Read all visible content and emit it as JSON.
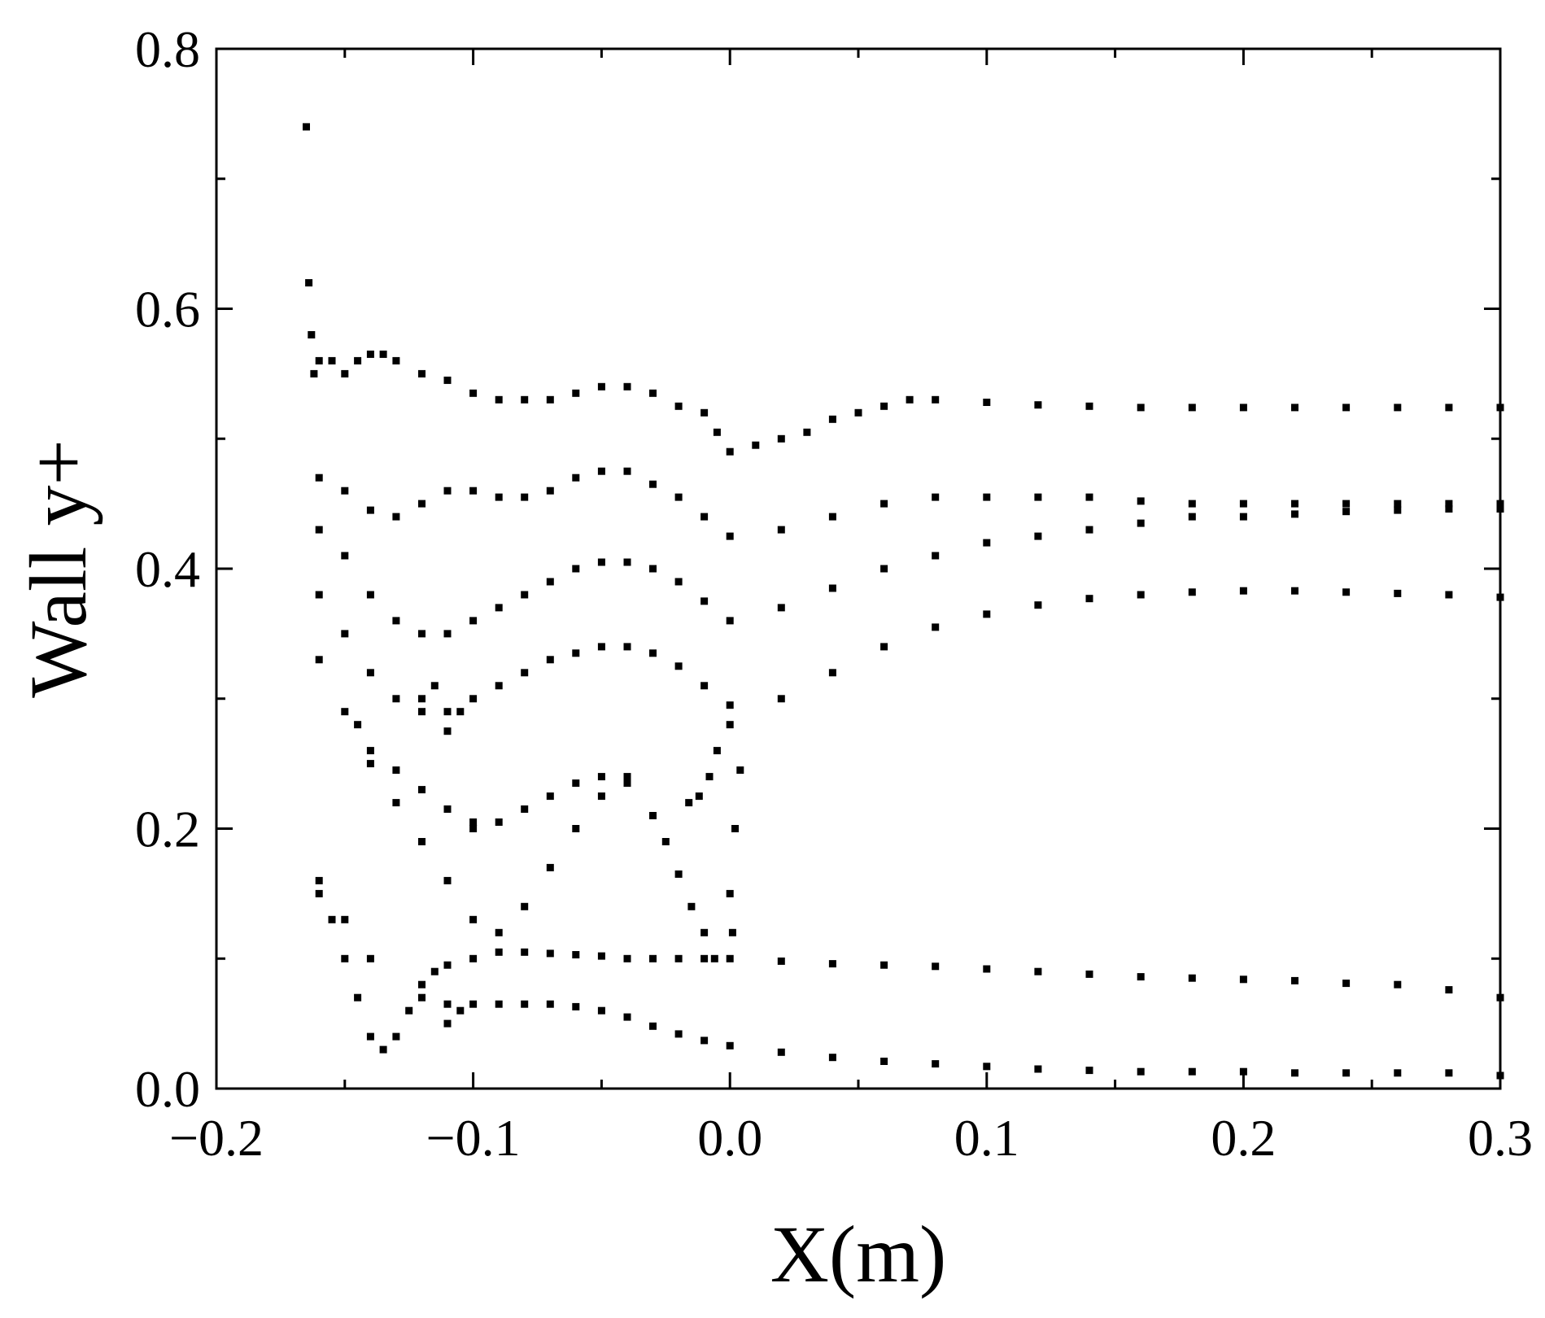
{
  "chart_data": {
    "type": "scatter",
    "title": "",
    "xlabel": "X(m)",
    "ylabel": "Wall y+",
    "xlim": [
      -0.2,
      0.3
    ],
    "ylim": [
      0.0,
      0.8
    ],
    "x_ticks": [
      -0.2,
      -0.1,
      0.0,
      0.1,
      0.2,
      0.3
    ],
    "x_tick_labels": [
      "−0.2",
      "−0.1",
      "0.0",
      "0.1",
      "0.2",
      "0.3"
    ],
    "y_ticks": [
      0.0,
      0.2,
      0.4,
      0.6,
      0.8
    ],
    "y_tick_labels": [
      "0.0",
      "0.2",
      "0.4",
      "0.6",
      "0.8"
    ],
    "grid": false,
    "legend": "none",
    "marker": "square",
    "color": "#000000",
    "series": [
      {
        "points": [
          [
            -0.165,
            0.74
          ],
          [
            -0.164,
            0.62
          ],
          [
            -0.163,
            0.58
          ],
          [
            -0.162,
            0.55
          ],
          [
            -0.16,
            0.56
          ],
          [
            -0.155,
            0.56
          ],
          [
            -0.15,
            0.55
          ],
          [
            -0.145,
            0.56
          ],
          [
            -0.14,
            0.565
          ],
          [
            -0.135,
            0.565
          ],
          [
            -0.13,
            0.56
          ],
          [
            -0.12,
            0.55
          ],
          [
            -0.11,
            0.545
          ],
          [
            -0.1,
            0.535
          ],
          [
            -0.09,
            0.53
          ],
          [
            -0.08,
            0.53
          ],
          [
            -0.07,
            0.53
          ],
          [
            -0.06,
            0.535
          ],
          [
            -0.05,
            0.54
          ],
          [
            -0.04,
            0.54
          ],
          [
            -0.03,
            0.535
          ],
          [
            -0.02,
            0.525
          ],
          [
            -0.01,
            0.52
          ],
          [
            -0.005,
            0.505
          ],
          [
            0.0,
            0.49
          ],
          [
            0.01,
            0.495
          ],
          [
            0.02,
            0.5
          ],
          [
            0.03,
            0.505
          ],
          [
            0.04,
            0.515
          ],
          [
            0.05,
            0.52
          ],
          [
            0.06,
            0.525
          ],
          [
            0.07,
            0.53
          ],
          [
            0.08,
            0.53
          ],
          [
            0.1,
            0.528
          ],
          [
            0.12,
            0.526
          ],
          [
            0.14,
            0.525
          ],
          [
            0.16,
            0.524
          ],
          [
            0.18,
            0.524
          ],
          [
            0.2,
            0.524
          ],
          [
            0.22,
            0.524
          ],
          [
            0.24,
            0.524
          ],
          [
            0.26,
            0.524
          ],
          [
            0.28,
            0.524
          ],
          [
            0.3,
            0.524
          ]
        ]
      },
      {
        "points": [
          [
            -0.16,
            0.47
          ],
          [
            -0.15,
            0.46
          ],
          [
            -0.14,
            0.445
          ],
          [
            -0.13,
            0.44
          ],
          [
            -0.12,
            0.45
          ],
          [
            -0.11,
            0.46
          ],
          [
            -0.1,
            0.46
          ],
          [
            -0.09,
            0.455
          ],
          [
            -0.08,
            0.455
          ],
          [
            -0.07,
            0.46
          ],
          [
            -0.06,
            0.47
          ],
          [
            -0.05,
            0.475
          ],
          [
            -0.04,
            0.475
          ],
          [
            -0.03,
            0.465
          ],
          [
            -0.02,
            0.455
          ],
          [
            -0.01,
            0.44
          ],
          [
            0.0,
            0.425
          ],
          [
            0.02,
            0.43
          ],
          [
            0.04,
            0.44
          ],
          [
            0.06,
            0.45
          ],
          [
            0.08,
            0.455
          ],
          [
            0.1,
            0.455
          ],
          [
            0.12,
            0.455
          ],
          [
            0.14,
            0.455
          ],
          [
            0.16,
            0.452
          ],
          [
            0.18,
            0.45
          ],
          [
            0.2,
            0.45
          ],
          [
            0.22,
            0.45
          ],
          [
            0.24,
            0.45
          ],
          [
            0.26,
            0.45
          ],
          [
            0.28,
            0.45
          ],
          [
            0.3,
            0.45
          ]
        ]
      },
      {
        "points": [
          [
            -0.16,
            0.43
          ],
          [
            -0.15,
            0.41
          ],
          [
            -0.14,
            0.38
          ],
          [
            -0.13,
            0.36
          ],
          [
            -0.12,
            0.35
          ],
          [
            -0.11,
            0.35
          ],
          [
            -0.1,
            0.36
          ],
          [
            -0.09,
            0.37
          ],
          [
            -0.08,
            0.38
          ],
          [
            -0.07,
            0.39
          ],
          [
            -0.06,
            0.4
          ],
          [
            -0.05,
            0.405
          ],
          [
            -0.04,
            0.405
          ],
          [
            -0.03,
            0.4
          ],
          [
            -0.02,
            0.39
          ],
          [
            -0.01,
            0.375
          ],
          [
            0.0,
            0.36
          ],
          [
            0.02,
            0.37
          ],
          [
            0.04,
            0.385
          ],
          [
            0.06,
            0.4
          ],
          [
            0.08,
            0.41
          ],
          [
            0.1,
            0.42
          ],
          [
            0.12,
            0.425
          ],
          [
            0.14,
            0.43
          ],
          [
            0.16,
            0.435
          ],
          [
            0.18,
            0.44
          ],
          [
            0.2,
            0.44
          ],
          [
            0.22,
            0.442
          ],
          [
            0.24,
            0.444
          ],
          [
            0.26,
            0.445
          ],
          [
            0.28,
            0.446
          ],
          [
            0.3,
            0.446
          ]
        ]
      },
      {
        "points": [
          [
            -0.16,
            0.38
          ],
          [
            -0.15,
            0.35
          ],
          [
            -0.14,
            0.32
          ],
          [
            -0.13,
            0.3
          ],
          [
            -0.12,
            0.29
          ],
          [
            -0.11,
            0.29
          ],
          [
            -0.1,
            0.3
          ],
          [
            -0.09,
            0.31
          ],
          [
            -0.08,
            0.32
          ],
          [
            -0.07,
            0.33
          ],
          [
            -0.06,
            0.335
          ],
          [
            -0.05,
            0.34
          ],
          [
            -0.04,
            0.34
          ],
          [
            -0.03,
            0.335
          ],
          [
            -0.02,
            0.325
          ],
          [
            -0.01,
            0.31
          ],
          [
            0.0,
            0.295
          ],
          [
            0.02,
            0.3
          ],
          [
            0.04,
            0.32
          ],
          [
            0.06,
            0.34
          ],
          [
            0.08,
            0.355
          ],
          [
            0.1,
            0.365
          ],
          [
            0.12,
            0.372
          ],
          [
            0.14,
            0.377
          ],
          [
            0.16,
            0.38
          ],
          [
            0.18,
            0.382
          ],
          [
            0.2,
            0.383
          ],
          [
            0.22,
            0.383
          ],
          [
            0.24,
            0.382
          ],
          [
            0.26,
            0.381
          ],
          [
            0.28,
            0.38
          ],
          [
            0.3,
            0.378
          ]
        ]
      },
      {
        "points": [
          [
            -0.16,
            0.33
          ],
          [
            -0.15,
            0.29
          ],
          [
            -0.14,
            0.26
          ],
          [
            -0.13,
            0.245
          ],
          [
            -0.12,
            0.23
          ],
          [
            -0.11,
            0.215
          ],
          [
            -0.1,
            0.205
          ],
          [
            -0.09,
            0.205
          ],
          [
            -0.08,
            0.215
          ],
          [
            -0.07,
            0.225
          ],
          [
            -0.06,
            0.235
          ],
          [
            -0.05,
            0.24
          ],
          [
            -0.04,
            0.235
          ],
          [
            -0.03,
            0.21
          ],
          [
            -0.025,
            0.19
          ],
          [
            -0.02,
            0.165
          ],
          [
            -0.015,
            0.14
          ],
          [
            -0.01,
            0.12
          ],
          [
            -0.006,
            0.1
          ]
        ]
      },
      {
        "points": [
          [
            -0.016,
            0.22
          ],
          [
            -0.012,
            0.225
          ],
          [
            -0.008,
            0.24
          ],
          [
            -0.005,
            0.26
          ],
          [
            0.0,
            0.28
          ],
          [
            0.002,
            0.2
          ],
          [
            0.004,
            0.245
          ],
          [
            0.0,
            0.15
          ],
          [
            0.001,
            0.12
          ]
        ]
      },
      {
        "points": [
          [
            -0.16,
            0.16
          ],
          [
            -0.155,
            0.13
          ],
          [
            -0.15,
            0.1
          ],
          [
            -0.145,
            0.07
          ],
          [
            -0.14,
            0.04
          ],
          [
            -0.135,
            0.03
          ],
          [
            -0.13,
            0.04
          ],
          [
            -0.125,
            0.06
          ],
          [
            -0.12,
            0.08
          ],
          [
            -0.115,
            0.09
          ],
          [
            -0.11,
            0.095
          ],
          [
            -0.1,
            0.1
          ],
          [
            -0.09,
            0.105
          ],
          [
            -0.08,
            0.105
          ],
          [
            -0.07,
            0.104
          ],
          [
            -0.06,
            0.103
          ],
          [
            -0.05,
            0.102
          ],
          [
            -0.04,
            0.1
          ],
          [
            -0.03,
            0.1
          ],
          [
            -0.02,
            0.1
          ],
          [
            -0.01,
            0.1
          ],
          [
            0.0,
            0.1
          ],
          [
            0.02,
            0.098
          ],
          [
            0.04,
            0.096
          ],
          [
            0.06,
            0.095
          ],
          [
            0.08,
            0.094
          ],
          [
            0.1,
            0.092
          ],
          [
            0.12,
            0.09
          ],
          [
            0.14,
            0.088
          ],
          [
            0.16,
            0.086
          ],
          [
            0.18,
            0.085
          ],
          [
            0.2,
            0.084
          ],
          [
            0.22,
            0.083
          ],
          [
            0.24,
            0.081
          ],
          [
            0.26,
            0.08
          ],
          [
            0.28,
            0.076
          ],
          [
            0.3,
            0.07
          ]
        ]
      },
      {
        "points": [
          [
            -0.12,
            0.07
          ],
          [
            -0.11,
            0.065
          ],
          [
            -0.1,
            0.065
          ],
          [
            -0.09,
            0.065
          ],
          [
            -0.08,
            0.065
          ],
          [
            -0.07,
            0.065
          ],
          [
            -0.06,
            0.063
          ],
          [
            -0.05,
            0.06
          ],
          [
            -0.04,
            0.055
          ],
          [
            -0.03,
            0.048
          ],
          [
            -0.02,
            0.042
          ],
          [
            -0.01,
            0.037
          ],
          [
            0.0,
            0.033
          ],
          [
            0.02,
            0.028
          ],
          [
            0.04,
            0.024
          ],
          [
            0.06,
            0.021
          ],
          [
            0.08,
            0.019
          ],
          [
            0.1,
            0.017
          ],
          [
            0.12,
            0.015
          ],
          [
            0.14,
            0.014
          ],
          [
            0.16,
            0.013
          ],
          [
            0.18,
            0.013
          ],
          [
            0.2,
            0.013
          ],
          [
            0.22,
            0.012
          ],
          [
            0.24,
            0.012
          ],
          [
            0.26,
            0.012
          ],
          [
            0.28,
            0.012
          ],
          [
            0.3,
            0.01
          ]
        ]
      },
      {
        "points": [
          [
            -0.145,
            0.28
          ],
          [
            -0.14,
            0.25
          ],
          [
            -0.13,
            0.22
          ],
          [
            -0.12,
            0.19
          ],
          [
            -0.11,
            0.16
          ],
          [
            -0.1,
            0.13
          ],
          [
            -0.09,
            0.12
          ],
          [
            -0.08,
            0.14
          ],
          [
            -0.07,
            0.17
          ],
          [
            -0.06,
            0.2
          ],
          [
            -0.05,
            0.225
          ],
          [
            -0.04,
            0.24
          ]
        ]
      },
      {
        "points": [
          [
            -0.12,
            0.3
          ],
          [
            -0.115,
            0.31
          ],
          [
            -0.11,
            0.275
          ],
          [
            -0.105,
            0.29
          ],
          [
            -0.1,
            0.2
          ],
          [
            -0.105,
            0.06
          ],
          [
            -0.11,
            0.05
          ],
          [
            -0.14,
            0.1
          ],
          [
            -0.15,
            0.13
          ],
          [
            -0.16,
            0.15
          ]
        ]
      }
    ]
  }
}
